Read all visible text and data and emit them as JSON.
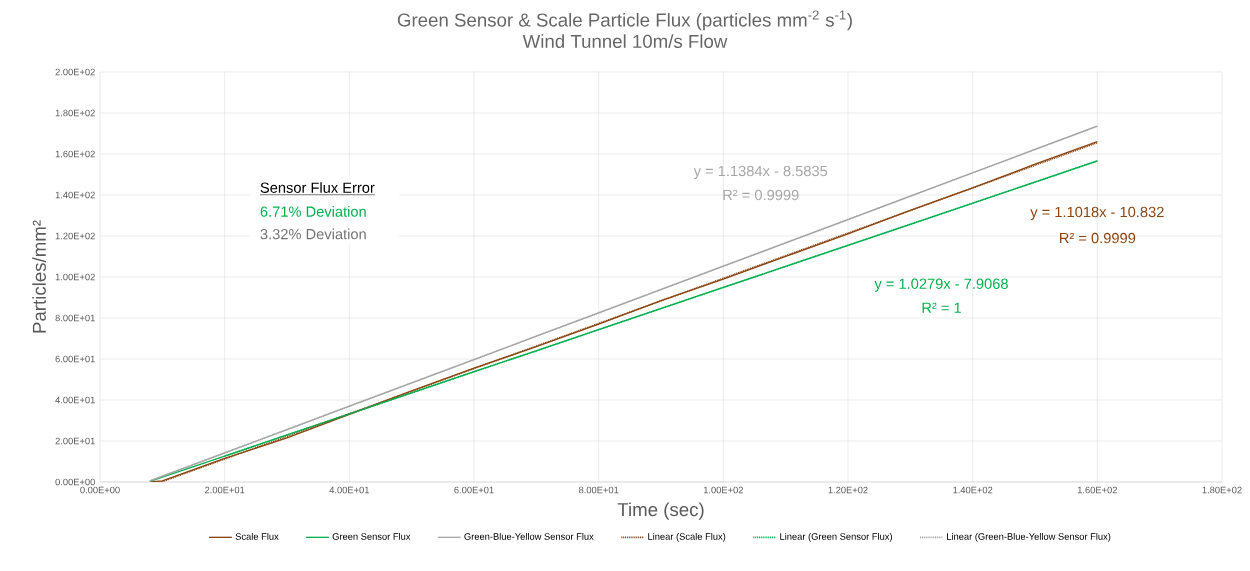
{
  "chart_data": {
    "type": "line",
    "title": "Green Sensor & Scale Particle Flux (particles mm$^{-2}$ s$^{-1}$)",
    "subtitle": "Wind Tunnel 10m/s Flow",
    "xlabel": "Time (sec)",
    "ylabel": "Particles/mm²",
    "x": [
      8,
      10,
      20,
      30,
      40,
      50,
      60,
      70,
      80,
      90,
      100,
      110,
      120,
      130,
      140,
      150,
      160
    ],
    "series": [
      {
        "name": "Scale Flux",
        "color": "#8b4513",
        "values": [
          0,
          0.5,
          11.5,
          21.5,
          33,
          44.5,
          55.5,
          66,
          77,
          88.5,
          99,
          110,
          121,
          132.5,
          143.5,
          155,
          166
        ]
      },
      {
        "name": "Green Sensor Flux",
        "color": "#00b050",
        "values": [
          0.3,
          2.4,
          12.6,
          23,
          33.2,
          43.5,
          53.8,
          64,
          74.3,
          84.6,
          94.9,
          105.2,
          115.4,
          125.7,
          136,
          146.3,
          156.6
        ]
      },
      {
        "name": "Green-Blue-Yellow Sensor Flux",
        "color": "#a6a6a6",
        "values": [
          0.5,
          2.8,
          14.2,
          25.6,
          37,
          48.3,
          59.7,
          71.1,
          82.5,
          93.9,
          105.3,
          116.6,
          128,
          139.4,
          150.8,
          162.2,
          173.6
        ]
      },
      {
        "name": "Linear (Scale Flux)",
        "color": "#8b4513",
        "type": "line",
        "line_style": "dotted",
        "x": [
          10,
          160
        ],
        "values": [
          0.2,
          165.5
        ]
      },
      {
        "name": "Linear (Green Sensor Flux)",
        "color": "#00b050",
        "type": "line",
        "line_style": "dotted",
        "x": [
          20,
          160
        ],
        "values": [
          12.6,
          156.6
        ]
      },
      {
        "name": "Linear (Green-Blue-Yellow Sensor Flux)",
        "color": "#a6a6a6",
        "type": "line",
        "line_style": "dotted",
        "x": [
          8,
          160
        ],
        "values": [
          0.5,
          173.6
        ]
      }
    ],
    "annotations": [
      "y = 1.1384x - 8.5835",
      "R² = 0.9999",
      "y = 1.1018x - 10.832",
      "R² = 0.9999",
      "y = 1.0279x - 7.9068",
      "R² = 1",
      "Sensor Flux Error",
      "6.71%  Deviation",
      "3.32% Deviation"
    ],
    "xlim": [
      0,
      180
    ],
    "ylim": [
      0,
      200
    ],
    "xticks": [
      {
        "value": 0,
        "label": "0.00E+00"
      },
      {
        "value": 20,
        "label": "2.00E+01"
      },
      {
        "value": 40,
        "label": "4.00E+01"
      },
      {
        "value": 60,
        "label": "6.00E+01"
      },
      {
        "value": 80,
        "label": "8.00E+01"
      },
      {
        "value": 100,
        "label": "1.00E+02"
      },
      {
        "value": 120,
        "label": "1.20E+02"
      },
      {
        "value": 140,
        "label": "1.40E+02"
      },
      {
        "value": 160,
        "label": "1.60E+02"
      },
      {
        "value": 180,
        "label": "1.80E+02"
      }
    ],
    "yticks": [
      {
        "value": 0,
        "label": "0.00E+00"
      },
      {
        "value": 20,
        "label": "2.00E+01"
      },
      {
        "value": 40,
        "label": "4.00E+01"
      },
      {
        "value": 60,
        "label": "6.00E+01"
      },
      {
        "value": 80,
        "label": "8.00E+01"
      },
      {
        "value": 100,
        "label": "1.00E+02"
      },
      {
        "value": 120,
        "label": "1.20E+02"
      },
      {
        "value": 140,
        "label": "1.40E+02"
      },
      {
        "value": 160,
        "label": "1.60E+02"
      },
      {
        "value": 180,
        "label": "1.80E+02"
      },
      {
        "value": 200,
        "label": "2.00E+02"
      }
    ],
    "grid": true,
    "legend": "bottom",
    "marker": "none",
    "line_style": "solid"
  }
}
